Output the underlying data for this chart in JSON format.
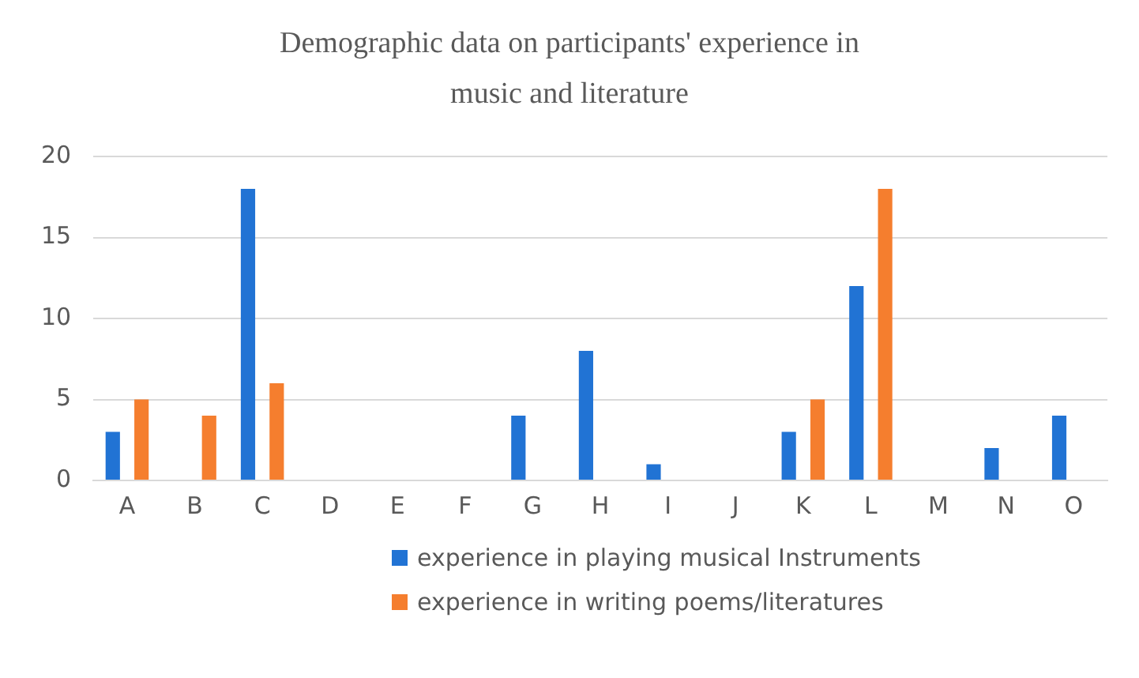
{
  "chart_data": {
    "type": "bar",
    "title": "Demographic data on participants' experience in music and literature",
    "categories": [
      "A",
      "B",
      "C",
      "D",
      "E",
      "F",
      "G",
      "H",
      "I",
      "J",
      "K",
      "L",
      "M",
      "N",
      "O"
    ],
    "series": [
      {
        "name": "experience in playing musical Instruments",
        "color": "#2173d4",
        "values": [
          3,
          0,
          18,
          0,
          0,
          0,
          4,
          8,
          1,
          0,
          3,
          12,
          0,
          2,
          4
        ]
      },
      {
        "name": "experience in writing poems/literatures",
        "color": "#f57e2e",
        "values": [
          5,
          4,
          6,
          0,
          0,
          0,
          0,
          0,
          0,
          0,
          5,
          18,
          0,
          0,
          0
        ]
      }
    ],
    "ylim": [
      0,
      20
    ],
    "yticks": [
      0,
      5,
      10,
      15,
      20
    ],
    "grid": "y",
    "legend": "bottom"
  }
}
